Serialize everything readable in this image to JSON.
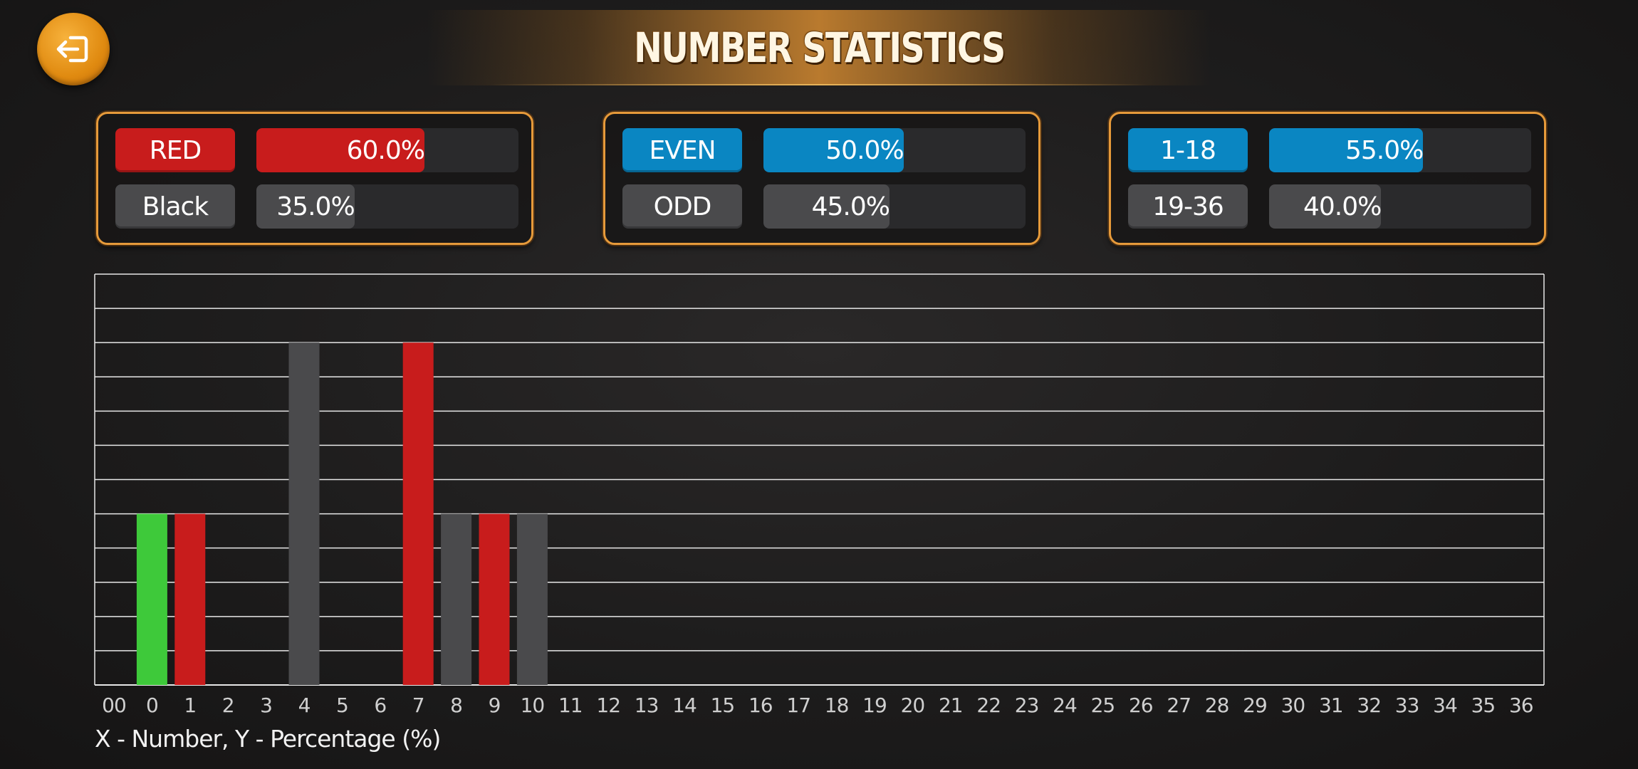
{
  "header": {
    "title": "NUMBER STATISTICS",
    "back_icon": "exit-arrow-icon"
  },
  "colors": {
    "red": "#c81c1c",
    "black": "#4a4a4c",
    "blue": "#0a86c2",
    "green": "#3ec93a",
    "accent": "#e69a3a"
  },
  "panels": [
    {
      "rows": [
        {
          "label": "RED",
          "value_text": "60.0%",
          "value": 60.0,
          "color": "#c81c1c"
        },
        {
          "label": "Black",
          "value_text": "35.0%",
          "value": 35.0,
          "color": "#4a4a4c"
        }
      ]
    },
    {
      "rows": [
        {
          "label": "EVEN",
          "value_text": "50.0%",
          "value": 50.0,
          "color": "#0a86c2"
        },
        {
          "label": "ODD",
          "value_text": "45.0%",
          "value": 45.0,
          "color": "#4a4a4c"
        }
      ]
    },
    {
      "rows": [
        {
          "label": "1-18",
          "value_text": "55.0%",
          "value": 55.0,
          "color": "#0a86c2"
        },
        {
          "label": "19-36",
          "value_text": "40.0%",
          "value": 40.0,
          "color": "#4a4a4c"
        }
      ]
    }
  ],
  "chart_data": {
    "type": "bar",
    "categories": [
      "00",
      "0",
      "1",
      "2",
      "3",
      "4",
      "5",
      "6",
      "7",
      "8",
      "9",
      "10",
      "11",
      "12",
      "13",
      "14",
      "15",
      "16",
      "17",
      "18",
      "19",
      "20",
      "21",
      "22",
      "23",
      "24",
      "25",
      "26",
      "27",
      "28",
      "29",
      "30",
      "31",
      "32",
      "33",
      "34",
      "35",
      "36"
    ],
    "values": [
      0,
      10,
      10,
      0,
      0,
      20,
      0,
      0,
      20,
      10,
      10,
      10,
      0,
      0,
      0,
      0,
      0,
      0,
      0,
      0,
      0,
      0,
      0,
      0,
      0,
      0,
      0,
      0,
      0,
      0,
      0,
      0,
      0,
      0,
      0,
      0,
      0,
      0
    ],
    "bar_colors": [
      "",
      "green",
      "red",
      "",
      "",
      "black",
      "",
      "",
      "red",
      "black",
      "red",
      "black",
      "",
      "",
      "",
      "",
      "",
      "",
      "",
      "",
      "",
      "",
      "",
      "",
      "",
      "",
      "",
      "",
      "",
      "",
      "",
      "",
      "",
      "",
      "",
      "",
      "",
      ""
    ],
    "ylim": [
      0,
      24
    ],
    "grid": true,
    "xlabel": "X - Number, Y - Percentage (%)"
  }
}
